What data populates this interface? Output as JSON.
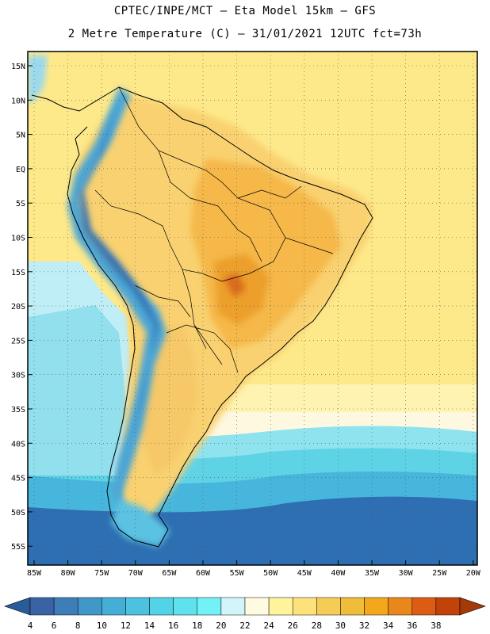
{
  "header": {
    "line1": "CPTEC/INPE/MCT –  Eta Model 15km – GFS",
    "line2": "2 Metre Temperature (C) – 31/01/2021 12UTC fct=73h"
  },
  "map": {
    "lat_labels": [
      "15N",
      "10N",
      "5N",
      "EQ",
      "5S",
      "10S",
      "15S",
      "20S",
      "25S",
      "30S",
      "35S",
      "40S",
      "45S",
      "50S",
      "55S"
    ],
    "lon_labels": [
      "85W",
      "80W",
      "75W",
      "70W",
      "65W",
      "60W",
      "55W",
      "50W",
      "45W",
      "40W",
      "35W",
      "30W",
      "25W",
      "20W"
    ],
    "colors": {
      "ocean_warm": "#fde98a",
      "land_hot": "#f5b43a",
      "coast_cool": "#cdeff5",
      "andes_cold": "#3d8fc9",
      "south_ocean": "#5ccbe6",
      "deep_south": "#2a63a6",
      "border": "#000000"
    }
  },
  "colorbar": {
    "ticks": [
      "4",
      "6",
      "8",
      "10",
      "12",
      "14",
      "16",
      "18",
      "20",
      "22",
      "24",
      "26",
      "28",
      "30",
      "32",
      "34",
      "36",
      "38"
    ],
    "colors": [
      "#3a63a6",
      "#3e7eb8",
      "#3f98c8",
      "#45aed6",
      "#4cc2e0",
      "#52d3e8",
      "#5fe2ee",
      "#72f2f6",
      "#d2f5fb",
      "#fffbe0",
      "#fff49b",
      "#fde27c",
      "#f5cc55",
      "#f0bd3a",
      "#f3a81b",
      "#e9871c",
      "#dc5c13",
      "#c1430a"
    ],
    "left_arrow_color": "#2a5c99",
    "right_arrow_color": "#a33a08"
  }
}
